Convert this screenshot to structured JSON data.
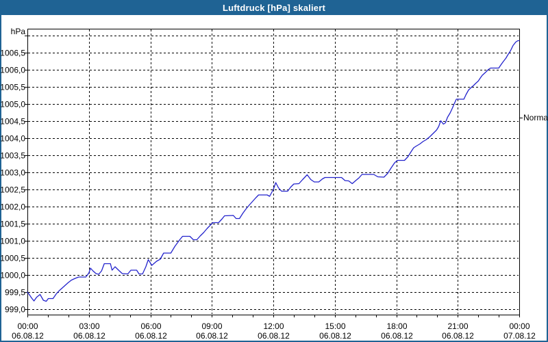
{
  "window": {
    "title": "Luftdruck [hPa] skaliert"
  },
  "colors": {
    "titlebar": "#1F6394",
    "frame": "#1F6394",
    "background": "#FFFFFF",
    "plot_border": "#000000",
    "grid": "#000000",
    "text": "#000000",
    "title_text": "#FFFFFF",
    "line": "#2222CC"
  },
  "chart_data": {
    "type": "line",
    "title": "Luftdruck [hPa] skaliert",
    "unit_label": "hPa",
    "normal_label": "Normal",
    "normal_value": 1004.6,
    "xlabel": "",
    "ylabel": "hPa",
    "ylim": [
      998.85,
      1007.15
    ],
    "xlim_hours": [
      0,
      24
    ],
    "grid": "dashed",
    "y_ticks": [
      {
        "v": 999.0,
        "label": "999,0"
      },
      {
        "v": 999.5,
        "label": "999,5"
      },
      {
        "v": 1000.0,
        "label": "1000,0"
      },
      {
        "v": 1000.5,
        "label": "1000,5"
      },
      {
        "v": 1001.0,
        "label": "1001,0"
      },
      {
        "v": 1001.5,
        "label": "1001,5"
      },
      {
        "v": 1002.0,
        "label": "1002,0"
      },
      {
        "v": 1002.5,
        "label": "1002,5"
      },
      {
        "v": 1003.0,
        "label": "1003,0"
      },
      {
        "v": 1003.5,
        "label": "1003,5"
      },
      {
        "v": 1004.0,
        "label": "1004,0"
      },
      {
        "v": 1004.5,
        "label": "1004,5"
      },
      {
        "v": 1005.0,
        "label": "1005,0"
      },
      {
        "v": 1005.5,
        "label": "1005,5"
      },
      {
        "v": 1006.0,
        "label": "1006,0"
      },
      {
        "v": 1006.5,
        "label": "1006,5"
      },
      {
        "v": 1007.0,
        "label": ""
      }
    ],
    "x_ticks": [
      {
        "h": 0,
        "time": "00:00",
        "date": "06.08.12"
      },
      {
        "h": 3,
        "time": "03:00",
        "date": "06.08.12"
      },
      {
        "h": 6,
        "time": "06:00",
        "date": "06.08.12"
      },
      {
        "h": 9,
        "time": "09:00",
        "date": "06.08.12"
      },
      {
        "h": 12,
        "time": "12:00",
        "date": "06.08.12"
      },
      {
        "h": 15,
        "time": "15:00",
        "date": "06.08.12"
      },
      {
        "h": 18,
        "time": "18:00",
        "date": "06.08.12"
      },
      {
        "h": 21,
        "time": "21:00",
        "date": "06.08.12"
      },
      {
        "h": 24,
        "time": "00:00",
        "date": "07.08.12"
      }
    ],
    "x_minor_tick_every_hours": 1,
    "series": [
      {
        "name": "Luftdruck",
        "color": "#2222CC",
        "points": [
          [
            0.0,
            999.5
          ],
          [
            0.1,
            999.42
          ],
          [
            0.2,
            999.33
          ],
          [
            0.32,
            999.24
          ],
          [
            0.45,
            999.35
          ],
          [
            0.62,
            999.43
          ],
          [
            0.78,
            999.26
          ],
          [
            0.92,
            999.23
          ],
          [
            1.02,
            999.31
          ],
          [
            1.25,
            999.31
          ],
          [
            1.4,
            999.44
          ],
          [
            1.55,
            999.54
          ],
          [
            1.7,
            999.62
          ],
          [
            1.85,
            999.7
          ],
          [
            2.0,
            999.78
          ],
          [
            2.15,
            999.85
          ],
          [
            2.33,
            999.9
          ],
          [
            2.5,
            999.94
          ],
          [
            2.85,
            999.94
          ],
          [
            3.0,
            1000.06
          ],
          [
            3.08,
            1000.2
          ],
          [
            3.2,
            1000.12
          ],
          [
            3.35,
            1000.04
          ],
          [
            3.48,
            1000.02
          ],
          [
            3.62,
            1000.12
          ],
          [
            3.75,
            1000.33
          ],
          [
            4.05,
            1000.33
          ],
          [
            4.13,
            1000.14
          ],
          [
            4.28,
            1000.24
          ],
          [
            4.45,
            1000.14
          ],
          [
            4.63,
            1000.04
          ],
          [
            4.9,
            1000.03
          ],
          [
            5.05,
            1000.14
          ],
          [
            5.33,
            1000.14
          ],
          [
            5.45,
            1000.03
          ],
          [
            5.62,
            1000.03
          ],
          [
            5.78,
            1000.24
          ],
          [
            5.9,
            1000.45
          ],
          [
            6.07,
            1000.28
          ],
          [
            6.3,
            1000.4
          ],
          [
            6.48,
            1000.46
          ],
          [
            6.65,
            1000.64
          ],
          [
            7.0,
            1000.64
          ],
          [
            7.2,
            1000.84
          ],
          [
            7.42,
            1001.02
          ],
          [
            7.57,
            1001.13
          ],
          [
            7.93,
            1001.13
          ],
          [
            8.1,
            1001.03
          ],
          [
            8.27,
            1001.03
          ],
          [
            8.43,
            1001.14
          ],
          [
            8.6,
            1001.24
          ],
          [
            8.77,
            1001.36
          ],
          [
            8.93,
            1001.46
          ],
          [
            9.05,
            1001.53
          ],
          [
            9.33,
            1001.53
          ],
          [
            9.5,
            1001.64
          ],
          [
            9.62,
            1001.73
          ],
          [
            10.05,
            1001.74
          ],
          [
            10.18,
            1001.65
          ],
          [
            10.35,
            1001.65
          ],
          [
            10.52,
            1001.81
          ],
          [
            10.68,
            1001.94
          ],
          [
            10.85,
            1002.06
          ],
          [
            11.0,
            1002.16
          ],
          [
            11.15,
            1002.26
          ],
          [
            11.28,
            1002.34
          ],
          [
            11.7,
            1002.34
          ],
          [
            11.82,
            1002.3
          ],
          [
            12.0,
            1002.5
          ],
          [
            12.12,
            1002.7
          ],
          [
            12.25,
            1002.55
          ],
          [
            12.4,
            1002.45
          ],
          [
            12.7,
            1002.45
          ],
          [
            12.85,
            1002.57
          ],
          [
            13.0,
            1002.66
          ],
          [
            13.25,
            1002.67
          ],
          [
            13.43,
            1002.79
          ],
          [
            13.65,
            1002.93
          ],
          [
            13.83,
            1002.79
          ],
          [
            14.0,
            1002.72
          ],
          [
            14.22,
            1002.72
          ],
          [
            14.4,
            1002.81
          ],
          [
            14.52,
            1002.85
          ],
          [
            15.33,
            1002.85
          ],
          [
            15.5,
            1002.76
          ],
          [
            15.68,
            1002.75
          ],
          [
            15.85,
            1002.67
          ],
          [
            16.02,
            1002.76
          ],
          [
            16.18,
            1002.84
          ],
          [
            16.33,
            1002.94
          ],
          [
            16.9,
            1002.94
          ],
          [
            17.1,
            1002.87
          ],
          [
            17.4,
            1002.86
          ],
          [
            17.58,
            1002.97
          ],
          [
            17.75,
            1003.13
          ],
          [
            17.92,
            1003.28
          ],
          [
            18.05,
            1003.35
          ],
          [
            18.4,
            1003.35
          ],
          [
            18.57,
            1003.46
          ],
          [
            18.73,
            1003.61
          ],
          [
            18.85,
            1003.72
          ],
          [
            18.98,
            1003.77
          ],
          [
            19.15,
            1003.83
          ],
          [
            19.3,
            1003.9
          ],
          [
            19.47,
            1003.96
          ],
          [
            19.63,
            1004.04
          ],
          [
            19.8,
            1004.14
          ],
          [
            19.97,
            1004.24
          ],
          [
            20.07,
            1004.34
          ],
          [
            20.17,
            1004.51
          ],
          [
            20.3,
            1004.41
          ],
          [
            20.4,
            1004.45
          ],
          [
            20.5,
            1004.61
          ],
          [
            20.63,
            1004.74
          ],
          [
            20.73,
            1004.87
          ],
          [
            20.83,
            1005.01
          ],
          [
            20.93,
            1005.14
          ],
          [
            21.3,
            1005.14
          ],
          [
            21.4,
            1005.27
          ],
          [
            21.53,
            1005.41
          ],
          [
            21.67,
            1005.49
          ],
          [
            21.77,
            1005.54
          ],
          [
            21.87,
            1005.6
          ],
          [
            22.0,
            1005.67
          ],
          [
            22.1,
            1005.76
          ],
          [
            22.2,
            1005.84
          ],
          [
            22.33,
            1005.91
          ],
          [
            22.5,
            1006.01
          ],
          [
            22.6,
            1006.05
          ],
          [
            23.0,
            1006.05
          ],
          [
            23.1,
            1006.14
          ],
          [
            23.22,
            1006.24
          ],
          [
            23.35,
            1006.34
          ],
          [
            23.45,
            1006.44
          ],
          [
            23.57,
            1006.55
          ],
          [
            23.7,
            1006.71
          ],
          [
            23.83,
            1006.81
          ],
          [
            23.93,
            1006.85
          ],
          [
            24.0,
            1006.85
          ]
        ]
      }
    ]
  }
}
